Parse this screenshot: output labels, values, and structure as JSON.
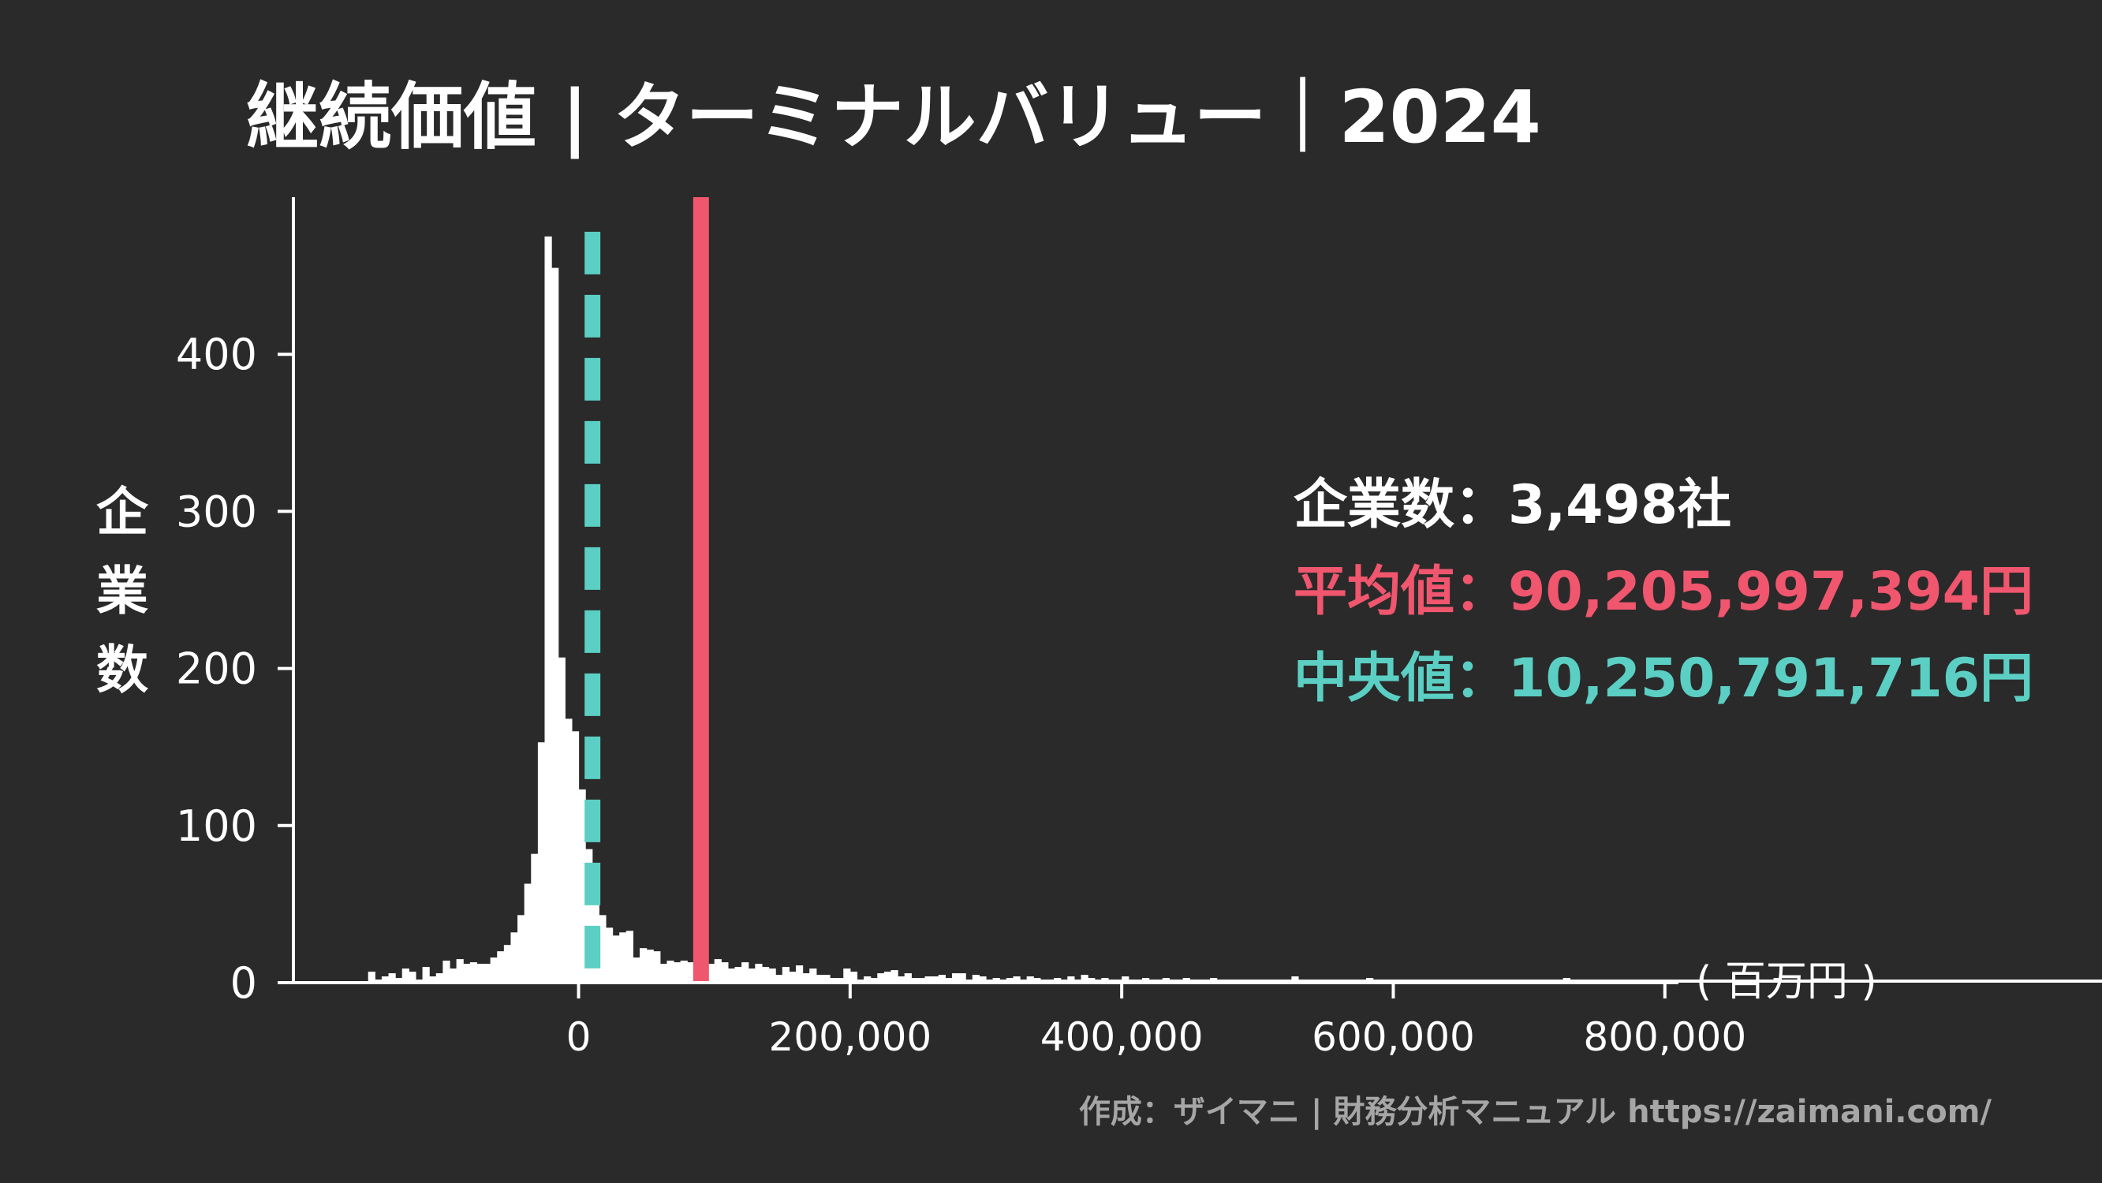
{
  "chart_data": {
    "type": "bar",
    "title": "継続価値 | ターミナルバリュー｜2024",
    "ylabel": "企業数",
    "xunit": "( 百万円 )",
    "x_ticks": [
      {
        "value": 0,
        "label": "0"
      },
      {
        "value": 200000,
        "label": "200,000"
      },
      {
        "value": 400000,
        "label": "400,000"
      },
      {
        "value": 600000,
        "label": "600,000"
      },
      {
        "value": 800000,
        "label": "800,000"
      }
    ],
    "y_ticks": [
      {
        "value": 0,
        "label": "0"
      },
      {
        "value": 100,
        "label": "100"
      },
      {
        "value": 200,
        "label": "200"
      },
      {
        "value": 300,
        "label": "300"
      },
      {
        "value": 400,
        "label": "400"
      }
    ],
    "xlim": [
      -210000,
      810000
    ],
    "ylim": [
      0,
      500
    ],
    "bin_start": -155000,
    "bin_width": 5000,
    "values": [
      7,
      2,
      4,
      6,
      3,
      9,
      7,
      2,
      10,
      4,
      6,
      14,
      9,
      15,
      12,
      13,
      12,
      12,
      16,
      20,
      24,
      32,
      43,
      63,
      82,
      153,
      475,
      455,
      207,
      168,
      160,
      123,
      85,
      63,
      43,
      35,
      30,
      32,
      33,
      16,
      22,
      21,
      20,
      12,
      14,
      13,
      14,
      13,
      13,
      11,
      12,
      15,
      13,
      9,
      10,
      13,
      9,
      12,
      10,
      9,
      5,
      10,
      7,
      11,
      6,
      9,
      5,
      5,
      3,
      3,
      9,
      7,
      2,
      4,
      3,
      6,
      7,
      8,
      4,
      6,
      3,
      3,
      4,
      4,
      5,
      3,
      6,
      6,
      2,
      5,
      4,
      2,
      3,
      2,
      3,
      4,
      2,
      4,
      3,
      2,
      2,
      3,
      2,
      4,
      2,
      5,
      3,
      2,
      3,
      2,
      2,
      4,
      2,
      2,
      3,
      2,
      2,
      3,
      2,
      2,
      3,
      2,
      2,
      2,
      3,
      2,
      2,
      2,
      2,
      2,
      2,
      2,
      2,
      2,
      2,
      2,
      4,
      2,
      2,
      2,
      2,
      2,
      2,
      2,
      2,
      2,
      2,
      3,
      2,
      2,
      2,
      2,
      2,
      2,
      2,
      2,
      2,
      2,
      2,
      2,
      2,
      2,
      2,
      2,
      2,
      2,
      2,
      2,
      2,
      2,
      2,
      2,
      2,
      2,
      2,
      2,
      3,
      2,
      2,
      2,
      2,
      2,
      2,
      2,
      2,
      2,
      2,
      2,
      2,
      2,
      2,
      2,
      2,
      2,
      2,
      2,
      2,
      2,
      2,
      2,
      2,
      2,
      2,
      2,
      2,
      2,
      2,
      3,
      2,
      2,
      2,
      2,
      2,
      2,
      2,
      2,
      2,
      2,
      2,
      2,
      2,
      2,
      2,
      2,
      2,
      2,
      2,
      2,
      2,
      2,
      2,
      2,
      2,
      2,
      2,
      2,
      2,
      2,
      2,
      2,
      2,
      2,
      2,
      2,
      2,
      2,
      2,
      2,
      2,
      2,
      2,
      2,
      2,
      2,
      2,
      2,
      2,
      2,
      2,
      2,
      2,
      2,
      2,
      2,
      2,
      2,
      2,
      2,
      2,
      2,
      2,
      2,
      2,
      2,
      2,
      2,
      2,
      2,
      2,
      2,
      2,
      2,
      2,
      2,
      2,
      2,
      2,
      2,
      2,
      2,
      2,
      2,
      2,
      2,
      2,
      2,
      2,
      2,
      2,
      2,
      2,
      2,
      2,
      2,
      2,
      2,
      2,
      2,
      2,
      2,
      2,
      2,
      2,
      2,
      2,
      2,
      2,
      2,
      2,
      2,
      2,
      2,
      2,
      2,
      2,
      2,
      2,
      2,
      2,
      2,
      2,
      2,
      2,
      2,
      2,
      2,
      2,
      2,
      2,
      2,
      2,
      2,
      2,
      2,
      2,
      2,
      2,
      2,
      2,
      2,
      2,
      2,
      2,
      2,
      2,
      2,
      2,
      2,
      2,
      2,
      4,
      2,
      2,
      2,
      2,
      2,
      2,
      2,
      2,
      2,
      2,
      2
    ],
    "mean_value": 90206,
    "median_value": 10251,
    "mean_color": "#f0566e",
    "median_color": "#5bcfc3",
    "bar_color": "#ffffff",
    "background_color": "#2a2a2a",
    "stats": [
      {
        "label": "企業数",
        "sep": "：",
        "value": "3,498社",
        "color": "#ffffff"
      },
      {
        "label": "平均値",
        "sep": "：",
        "value": "90,205,997,394円",
        "color": "#f0566e"
      },
      {
        "label": "中央値",
        "sep": "：",
        "value": "10,250,791,716円",
        "color": "#5bcfc3"
      }
    ],
    "footer": "作成：ザイマニ | 財務分析マニュアル https://zaimani.com/"
  }
}
